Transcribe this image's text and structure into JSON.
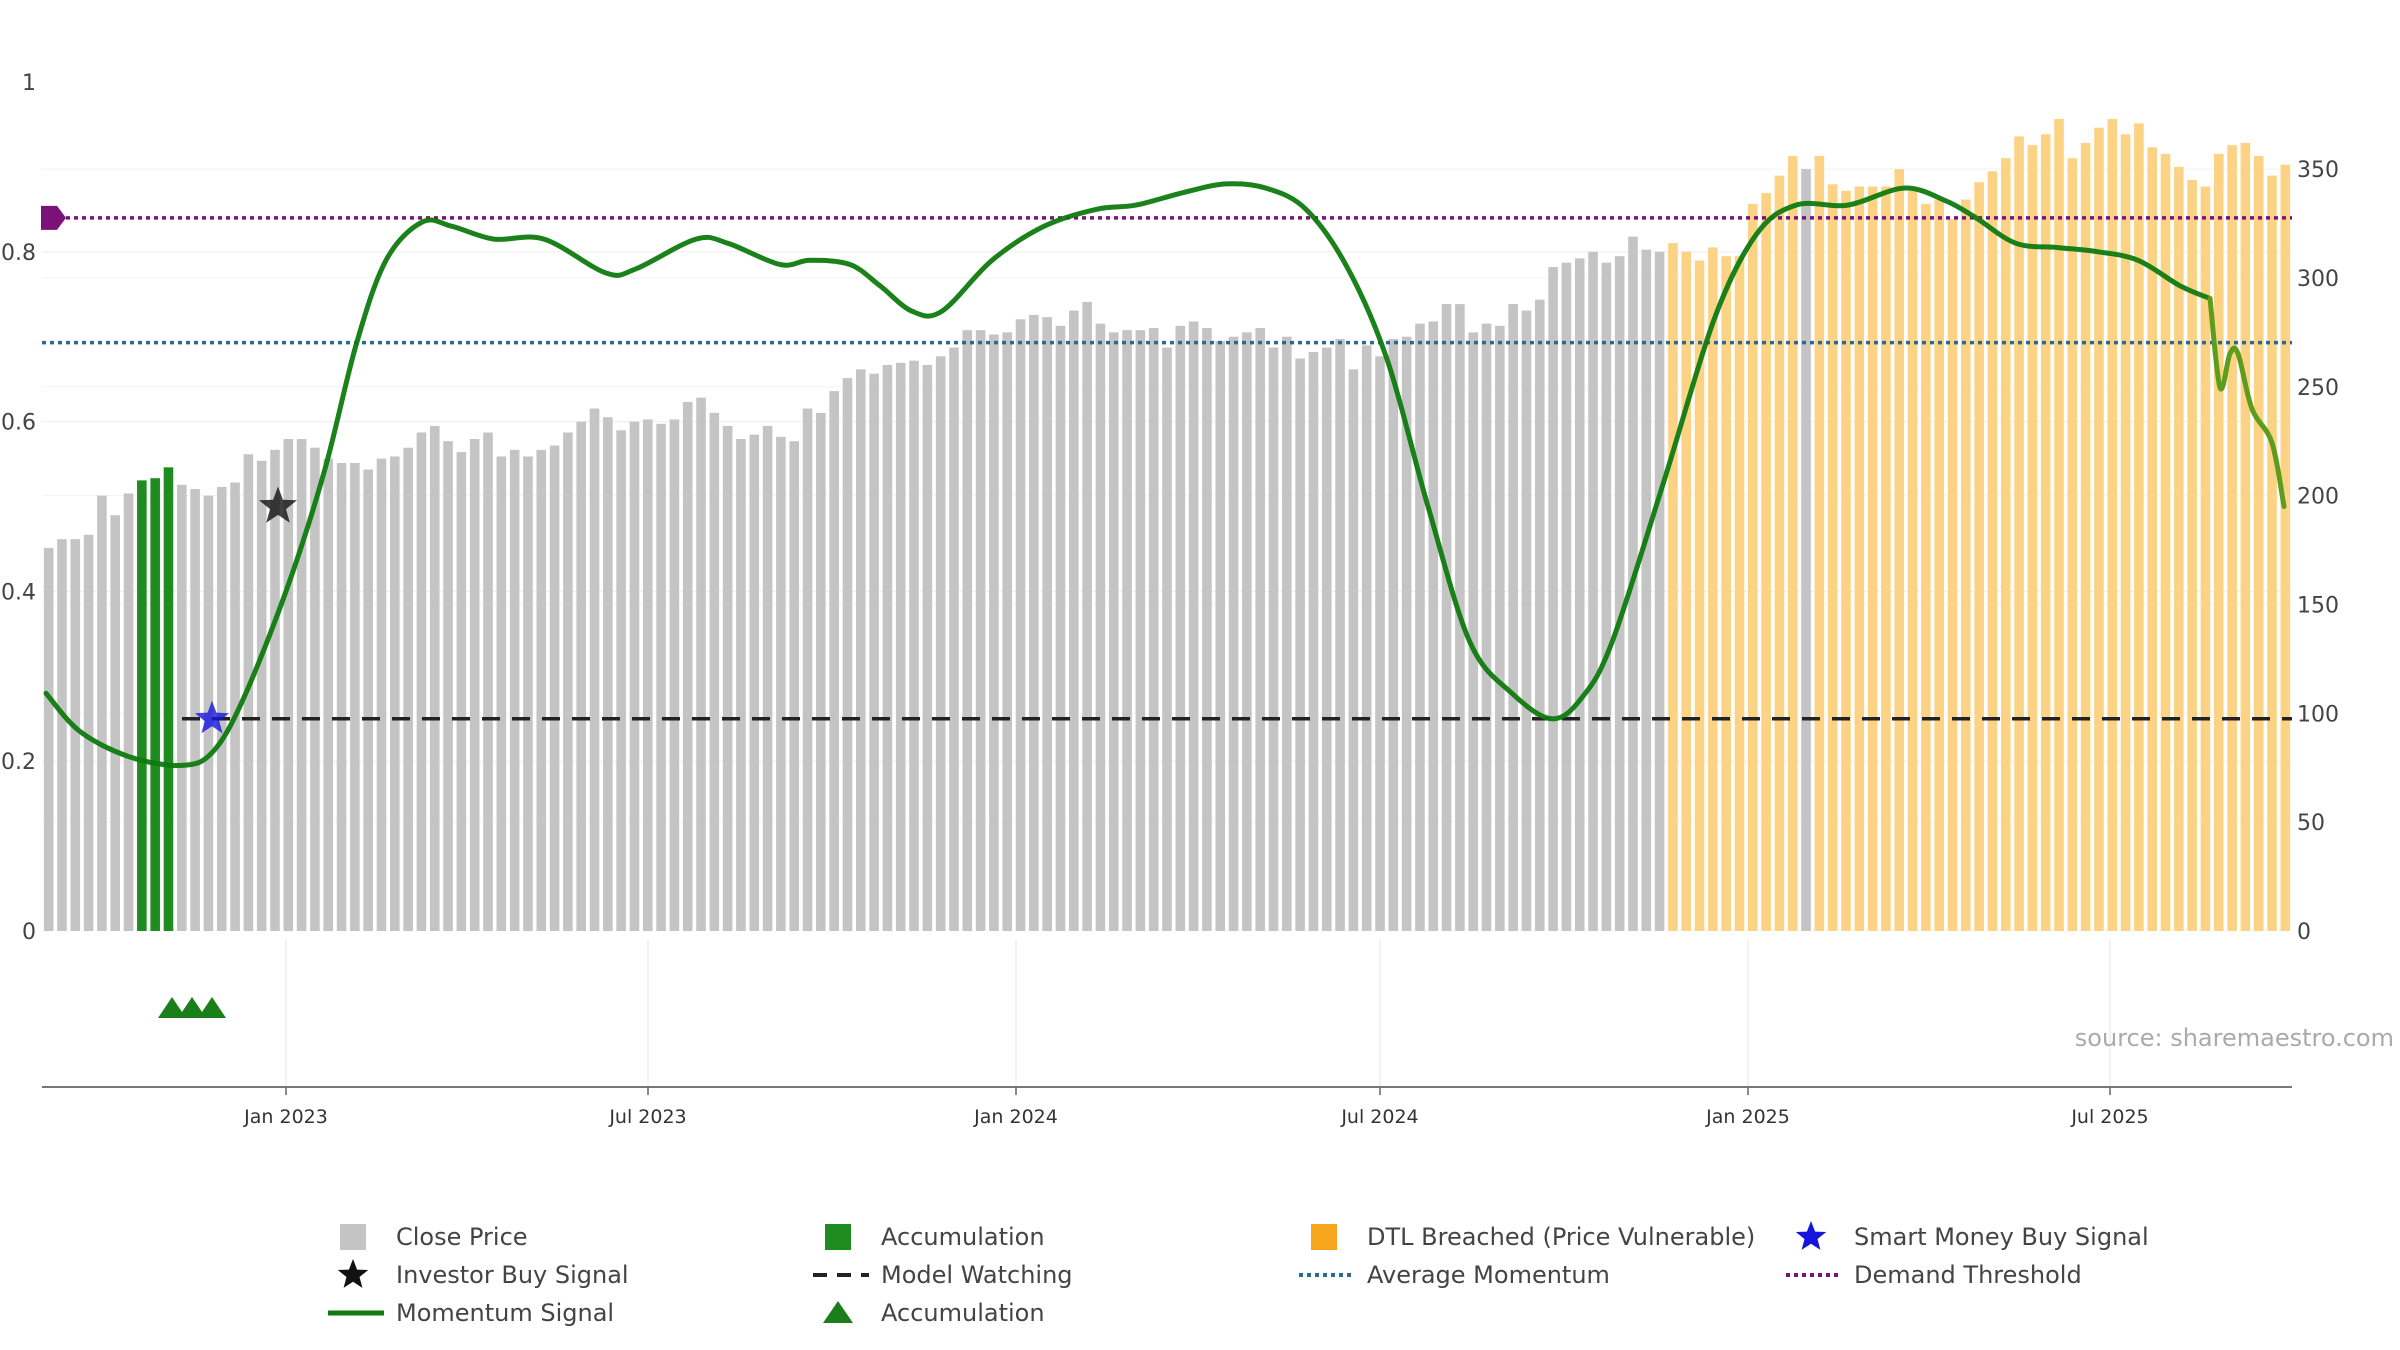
{
  "chart_data": {
    "type": "bar",
    "source": "source: sharemaestro.com",
    "left_axis": {
      "ylim": [
        0,
        1
      ],
      "ticks": [
        0,
        0.2,
        0.4,
        0.6,
        0.8,
        1
      ],
      "tick_labels": [
        "0",
        "0.2",
        "0.4",
        "0.6",
        "0.8",
        "1"
      ]
    },
    "right_axis": {
      "ylim": [
        0,
        390
      ],
      "ticks": [
        0,
        50,
        100,
        150,
        200,
        250,
        300,
        350
      ],
      "tick_labels": [
        "0",
        "50",
        "100",
        "150",
        "200",
        "250",
        "300",
        "350"
      ]
    },
    "x_axis": {
      "start": "2022-09-01",
      "end": "2025-09-30",
      "ticks": [
        {
          "date": "2023-01-01",
          "label": "Jan 2023"
        },
        {
          "date": "2023-07-01",
          "label": "Jul 2023"
        },
        {
          "date": "2024-01-01",
          "label": "Jan 2024"
        },
        {
          "date": "2024-07-01",
          "label": "Jul 2024"
        },
        {
          "date": "2025-01-01",
          "label": "Jan 2025"
        },
        {
          "date": "2025-07-01",
          "label": "Jul 2025"
        }
      ]
    },
    "close_price": [
      176,
      180,
      180,
      182,
      200,
      191,
      201,
      207,
      208,
      213,
      205,
      203,
      200,
      204,
      206,
      219,
      216,
      221,
      226,
      226,
      222,
      217,
      215,
      215,
      212,
      217,
      218,
      222,
      229,
      232,
      225,
      220,
      226,
      229,
      218,
      221,
      218,
      221,
      223,
      229,
      234,
      240,
      236,
      230,
      234,
      235,
      233,
      235,
      243,
      245,
      238,
      232,
      226,
      228,
      232,
      227,
      225,
      240,
      238,
      248,
      254,
      258,
      256,
      260,
      261,
      262,
      260,
      264,
      268,
      276,
      276,
      274,
      275,
      281,
      283,
      282,
      278,
      285,
      289,
      279,
      275,
      276,
      276,
      277,
      268,
      278,
      280,
      277,
      271,
      273,
      275,
      277,
      268,
      273,
      263,
      266,
      268,
      272,
      258,
      269,
      264,
      272,
      273,
      279,
      280,
      288,
      288,
      275,
      279,
      278,
      288,
      285,
      290,
      305,
      307,
      309,
      312,
      307,
      310,
      319,
      313,
      312,
      316,
      312,
      308,
      314,
      310,
      310,
      334,
      339,
      347,
      356,
      350,
      356,
      343,
      340,
      342,
      342,
      342,
      350,
      340,
      334,
      336,
      327,
      336,
      344,
      349,
      355,
      365,
      361,
      366,
      373,
      355,
      362,
      369,
      373,
      366,
      371,
      360,
      357,
      351,
      345,
      342,
      357,
      361,
      362,
      356,
      347,
      352
    ],
    "accumulation_bar_indices": [
      7,
      8,
      9
    ],
    "dtl_breached_start_index": 122,
    "dtl_breached_excluded_indices": [
      132
    ],
    "momentum_signal": [
      [
        "2022-09-03",
        0.28
      ],
      [
        "2022-09-20",
        0.235
      ],
      [
        "2022-10-15",
        0.205
      ],
      [
        "2022-11-10",
        0.195
      ],
      [
        "2022-11-25",
        0.21
      ],
      [
        "2022-12-10",
        0.27
      ],
      [
        "2023-01-01",
        0.4
      ],
      [
        "2023-01-20",
        0.54
      ],
      [
        "2023-02-05",
        0.69
      ],
      [
        "2023-02-20",
        0.79
      ],
      [
        "2023-03-10",
        0.835
      ],
      [
        "2023-03-25",
        0.83
      ],
      [
        "2023-04-15",
        0.815
      ],
      [
        "2023-05-10",
        0.815
      ],
      [
        "2023-06-10",
        0.775
      ],
      [
        "2023-06-25",
        0.78
      ],
      [
        "2023-07-25",
        0.815
      ],
      [
        "2023-08-10",
        0.81
      ],
      [
        "2023-09-05",
        0.785
      ],
      [
        "2023-09-20",
        0.79
      ],
      [
        "2023-10-10",
        0.785
      ],
      [
        "2023-10-25",
        0.76
      ],
      [
        "2023-11-10",
        0.73
      ],
      [
        "2023-11-25",
        0.73
      ],
      [
        "2023-12-20",
        0.79
      ],
      [
        "2024-01-15",
        0.83
      ],
      [
        "2024-02-10",
        0.85
      ],
      [
        "2024-03-01",
        0.855
      ],
      [
        "2024-03-25",
        0.87
      ],
      [
        "2024-04-15",
        0.88
      ],
      [
        "2024-05-05",
        0.875
      ],
      [
        "2024-05-25",
        0.85
      ],
      [
        "2024-06-15",
        0.78
      ],
      [
        "2024-07-05",
        0.67
      ],
      [
        "2024-07-25",
        0.5
      ],
      [
        "2024-08-15",
        0.34
      ],
      [
        "2024-09-05",
        0.28
      ],
      [
        "2024-09-25",
        0.25
      ],
      [
        "2024-10-10",
        0.275
      ],
      [
        "2024-10-25",
        0.34
      ],
      [
        "2024-11-20",
        0.53
      ],
      [
        "2024-12-15",
        0.72
      ],
      [
        "2025-01-05",
        0.82
      ],
      [
        "2025-01-25",
        0.855
      ],
      [
        "2025-02-20",
        0.855
      ],
      [
        "2025-03-20",
        0.875
      ],
      [
        "2025-04-10",
        0.86
      ],
      [
        "2025-04-25",
        0.84
      ],
      [
        "2025-05-15",
        0.81
      ],
      [
        "2025-06-05",
        0.805
      ],
      [
        "2025-06-25",
        0.8
      ],
      [
        "2025-07-15",
        0.79
      ],
      [
        "2025-08-05",
        0.76
      ],
      [
        "2025-08-20",
        0.745
      ],
      [
        "2025-08-25",
        0.64
      ],
      [
        "2025-08-30",
        0.68
      ],
      [
        "2025-09-03",
        0.68
      ],
      [
        "2025-09-10",
        0.615
      ],
      [
        "2025-09-20",
        0.575
      ],
      [
        "2025-09-26",
        0.5
      ]
    ],
    "average_momentum": 0.693,
    "demand_threshold": 0.84,
    "model_watching": {
      "level": 0.25,
      "start": "2022-11-10"
    },
    "investor_buy_signal": {
      "date": "2022-12-28",
      "value": 0.5
    },
    "smart_money_buy_signal": {
      "date": "2022-11-25",
      "value": 0.25
    },
    "accumulation_markers": [
      "2022-11-05",
      "2022-11-15",
      "2022-11-25"
    ],
    "demand_marker": {
      "date": "2022-09-05",
      "value": 0.84
    },
    "legend": [
      {
        "key": "close",
        "label": "Close Price"
      },
      {
        "key": "investor",
        "label": "Investor Buy Signal"
      },
      {
        "key": "momentum",
        "label": "Momentum Signal"
      },
      {
        "key": "acc_bar",
        "label": "Accumulation"
      },
      {
        "key": "watching",
        "label": "Model Watching"
      },
      {
        "key": "acc_tri",
        "label": "Accumulation"
      },
      {
        "key": "dtl",
        "label": "DTL Breached (Price Vulnerable)"
      },
      {
        "key": "avg",
        "label": "Average Momentum"
      },
      {
        "key": "smart",
        "label": "Smart Money Buy Signal"
      },
      {
        "key": "demand",
        "label": "Demand Threshold"
      }
    ],
    "colors": {
      "close": "#c4c4c4",
      "accumulation": "#1f8c1f",
      "dtl": "#fcd385",
      "momentum": "#0f7a0f",
      "momentum_late": "#5e9c1c",
      "watching": "#222222",
      "average": "#2a6a8e",
      "demand": "#7a127a",
      "smart": "#1515dd",
      "investor": "#111111",
      "acc_triangle": "#1a7f1a",
      "dtl_legend": "#f7a51c"
    }
  }
}
